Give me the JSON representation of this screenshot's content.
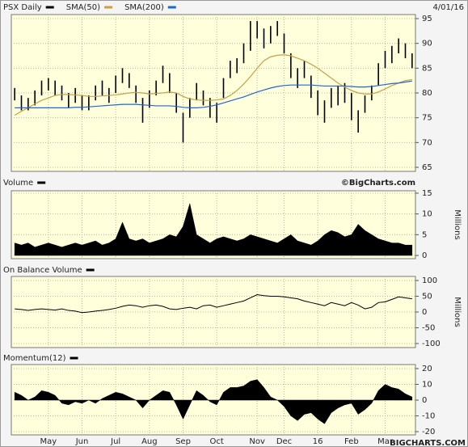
{
  "chart_data": [
    {
      "type": "ohlc",
      "date": "4/01/16",
      "ylim": [
        65,
        95
      ],
      "yticks": [
        65,
        70,
        75,
        80,
        85,
        90,
        95
      ],
      "grid": true,
      "series": [
        {
          "name": "PSX Daily",
          "color": "#000000",
          "high": [
            81,
            79.5,
            79,
            80.5,
            82.5,
            83,
            82.5,
            81.5,
            80,
            81,
            79.5,
            79.5,
            81.5,
            82.5,
            81,
            83.5,
            85,
            84,
            81.5,
            79,
            80.5,
            82.5,
            85.5,
            84,
            80,
            76,
            79,
            82,
            80.5,
            79,
            78,
            83,
            86.5,
            87,
            90,
            94.5,
            94.5,
            93,
            93.5,
            94.5,
            92,
            88,
            85,
            86.5,
            83.5,
            80.5,
            78.5,
            81,
            81.5,
            82,
            80,
            76.5,
            79.5,
            81.5,
            86,
            88.5,
            89.5,
            91,
            90,
            88
          ],
          "low": [
            78.5,
            76.5,
            76.5,
            77.5,
            79.5,
            80.5,
            79.5,
            78.5,
            77,
            78,
            76.5,
            76.5,
            78.5,
            79.5,
            78,
            80,
            82,
            81,
            78,
            74,
            77,
            79.5,
            82,
            80,
            76,
            70,
            75,
            78.5,
            77.5,
            75,
            74,
            79,
            83,
            84,
            86,
            88.5,
            91,
            89,
            90,
            91.5,
            88,
            83,
            81,
            83,
            79,
            75.5,
            74,
            77,
            77.5,
            78,
            74.5,
            72,
            76,
            78.5,
            81.5,
            85,
            86,
            88,
            87,
            85
          ]
        },
        {
          "name": "SMA(50)",
          "color": "#c9a043",
          "values": [
            75.5,
            76.3,
            77,
            77.8,
            78.5,
            79,
            79.5,
            79.7,
            79.7,
            79.6,
            79.5,
            79.3,
            79.3,
            79.4,
            79.5,
            79.6,
            79.8,
            80,
            80.1,
            80,
            79.8,
            79.9,
            80,
            80.2,
            80,
            79.3,
            78.8,
            78.6,
            78.5,
            78.5,
            78.6,
            78.8,
            79.5,
            80.5,
            81.8,
            83.3,
            85,
            86.5,
            87.3,
            87.6,
            87.7,
            87.5,
            87,
            86.5,
            85.8,
            85,
            84,
            83,
            82,
            81.2,
            80.5,
            80,
            79.8,
            79.8,
            80.2,
            80.8,
            81.5,
            82,
            82.5,
            82.7
          ]
        },
        {
          "name": "SMA(200)",
          "color": "#2266cc",
          "values": [
            77,
            77,
            77,
            77,
            77,
            77,
            77,
            77,
            77,
            77.1,
            77.1,
            77.2,
            77.3,
            77.4,
            77.5,
            77.6,
            77.7,
            77.7,
            77.7,
            77.6,
            77.5,
            77.4,
            77.4,
            77.4,
            77.3,
            77.1,
            77,
            77,
            77.1,
            77.3,
            77.6,
            78,
            78.4,
            78.8,
            79.2,
            79.7,
            80.2,
            80.6,
            81,
            81.3,
            81.5,
            81.6,
            81.6,
            81.6,
            81.6,
            81.5,
            81.4,
            81.4,
            81.4,
            81.4,
            81.3,
            81.2,
            81.2,
            81.3,
            81.5,
            81.7,
            81.9,
            82,
            82.2,
            82.4
          ]
        }
      ]
    },
    {
      "type": "area",
      "title": "Volume",
      "watermark": "©BigCharts.com",
      "y_label": "Millions",
      "color": "#000000",
      "ylim": [
        0,
        15
      ],
      "yticks": [
        0,
        5,
        10,
        15
      ],
      "grid": true,
      "values": [
        3,
        2.5,
        3,
        2,
        2.5,
        3,
        2.5,
        2,
        2.5,
        3,
        2.5,
        3,
        3.5,
        2.5,
        3,
        4,
        8,
        4,
        3.5,
        4,
        3,
        3.5,
        4,
        5,
        4.5,
        7,
        12.5,
        5,
        4,
        3,
        4,
        4.5,
        4,
        3.5,
        4,
        5,
        4.5,
        4,
        3.5,
        3,
        4,
        5,
        3.5,
        3,
        2.5,
        3.5,
        5,
        6,
        5.5,
        4.5,
        5,
        7.5,
        6,
        5,
        4,
        3.5,
        3,
        3,
        2.5,
        2.5
      ]
    },
    {
      "type": "line",
      "title": "On Balance Volume",
      "y_label": "Millions",
      "color": "#000000",
      "ylim": [
        -100,
        100
      ],
      "yticks": [
        -100,
        -50,
        0,
        50,
        100
      ],
      "grid": true,
      "values": [
        10,
        8,
        5,
        8,
        10,
        8,
        6,
        10,
        5,
        3,
        -2,
        0,
        3,
        5,
        8,
        12,
        18,
        22,
        20,
        15,
        20,
        22,
        18,
        10,
        8,
        12,
        15,
        10,
        20,
        22,
        15,
        20,
        25,
        30,
        35,
        45,
        55,
        52,
        50,
        50,
        48,
        45,
        42,
        35,
        30,
        25,
        20,
        30,
        25,
        20,
        30,
        22,
        10,
        15,
        30,
        32,
        40,
        48,
        45,
        42
      ]
    },
    {
      "type": "area",
      "title": "Momentum(12)",
      "source": "BIGCHARTS.COM",
      "color": "#000000",
      "ylim": [
        -20,
        20
      ],
      "yticks": [
        -20,
        -10,
        0,
        10,
        20
      ],
      "grid": true,
      "categories": [
        null,
        null,
        null,
        null,
        null,
        "May",
        null,
        null,
        null,
        null,
        "Jun",
        null,
        null,
        null,
        null,
        "Jul",
        null,
        null,
        null,
        null,
        "Aug",
        null,
        null,
        null,
        null,
        "Sep",
        null,
        null,
        null,
        null,
        "Oct",
        null,
        null,
        null,
        null,
        null,
        "Nov",
        null,
        null,
        null,
        "Dec",
        null,
        null,
        null,
        null,
        "16",
        null,
        null,
        null,
        null,
        "Feb",
        null,
        null,
        null,
        null,
        "Mar",
        null,
        null,
        null,
        null
      ],
      "values": [
        5,
        3,
        0,
        2,
        6,
        5,
        3,
        -2,
        -3,
        -1,
        -2,
        0,
        -2,
        1,
        3,
        5,
        4,
        2,
        0,
        -5,
        0,
        3,
        6,
        5,
        -3,
        -12,
        -3,
        6,
        3,
        -1,
        -3,
        5,
        8,
        8,
        9,
        12,
        13,
        8,
        2,
        0,
        -4,
        -10,
        -13,
        -9,
        -8,
        -12,
        -15,
        -8,
        -5,
        -3,
        -2,
        -9,
        -6,
        -2,
        6,
        10,
        8,
        7,
        4,
        2
      ]
    }
  ]
}
